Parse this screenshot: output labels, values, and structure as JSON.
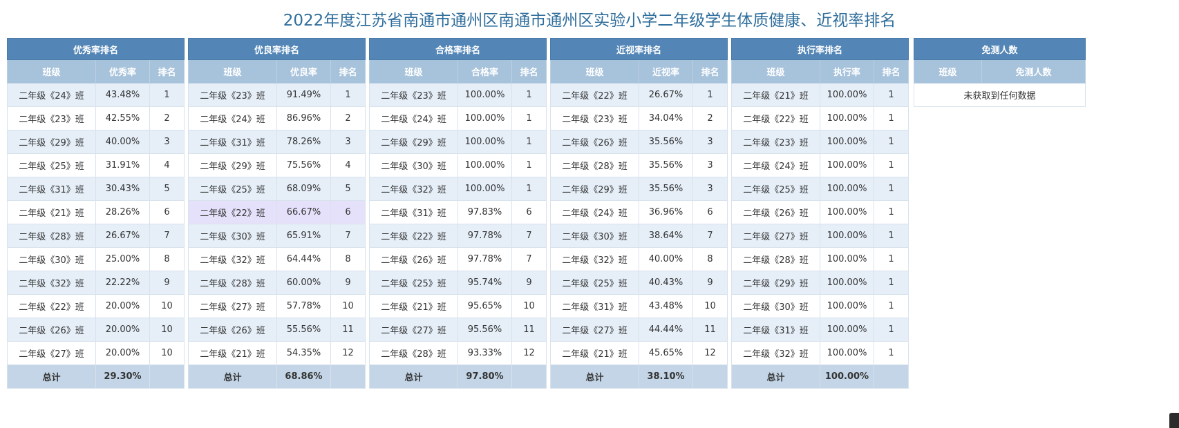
{
  "title": "2022年度江苏省南通市通州区南通市通州区实验小学二年级学生体质健康、近视率排名",
  "total_label": "总计",
  "panels": [
    {
      "title": "优秀率排名",
      "columns": [
        "班级",
        "优秀率",
        "排名"
      ],
      "rows": [
        [
          "二年级《24》班",
          "43.48%",
          "1"
        ],
        [
          "二年级《23》班",
          "42.55%",
          "2"
        ],
        [
          "二年级《29》班",
          "40.00%",
          "3"
        ],
        [
          "二年级《25》班",
          "31.91%",
          "4"
        ],
        [
          "二年级《31》班",
          "30.43%",
          "5"
        ],
        [
          "二年级《21》班",
          "28.26%",
          "6"
        ],
        [
          "二年级《28》班",
          "26.67%",
          "7"
        ],
        [
          "二年级《30》班",
          "25.00%",
          "8"
        ],
        [
          "二年级《32》班",
          "22.22%",
          "9"
        ],
        [
          "二年级《22》班",
          "20.00%",
          "10"
        ],
        [
          "二年级《26》班",
          "20.00%",
          "10"
        ],
        [
          "二年级《27》班",
          "20.00%",
          "10"
        ]
      ],
      "total": "29.30%"
    },
    {
      "title": "优良率排名",
      "columns": [
        "班级",
        "优良率",
        "排名"
      ],
      "rows": [
        [
          "二年级《23》班",
          "91.49%",
          "1"
        ],
        [
          "二年级《24》班",
          "86.96%",
          "2"
        ],
        [
          "二年级《31》班",
          "78.26%",
          "3"
        ],
        [
          "二年级《29》班",
          "75.56%",
          "4"
        ],
        [
          "二年级《25》班",
          "68.09%",
          "5"
        ],
        [
          "二年级《22》班",
          "66.67%",
          "6"
        ],
        [
          "二年级《30》班",
          "65.91%",
          "7"
        ],
        [
          "二年级《32》班",
          "64.44%",
          "8"
        ],
        [
          "二年级《28》班",
          "60.00%",
          "9"
        ],
        [
          "二年级《27》班",
          "57.78%",
          "10"
        ],
        [
          "二年级《26》班",
          "55.56%",
          "11"
        ],
        [
          "二年级《21》班",
          "54.35%",
          "12"
        ]
      ],
      "total": "68.86%",
      "highlight_row": 5
    },
    {
      "title": "合格率排名",
      "columns": [
        "班级",
        "合格率",
        "排名"
      ],
      "rows": [
        [
          "二年级《23》班",
          "100.00%",
          "1"
        ],
        [
          "二年级《24》班",
          "100.00%",
          "1"
        ],
        [
          "二年级《29》班",
          "100.00%",
          "1"
        ],
        [
          "二年级《30》班",
          "100.00%",
          "1"
        ],
        [
          "二年级《32》班",
          "100.00%",
          "1"
        ],
        [
          "二年级《31》班",
          "97.83%",
          "6"
        ],
        [
          "二年级《22》班",
          "97.78%",
          "7"
        ],
        [
          "二年级《26》班",
          "97.78%",
          "7"
        ],
        [
          "二年级《25》班",
          "95.74%",
          "9"
        ],
        [
          "二年级《21》班",
          "95.65%",
          "10"
        ],
        [
          "二年级《27》班",
          "95.56%",
          "11"
        ],
        [
          "二年级《28》班",
          "93.33%",
          "12"
        ]
      ],
      "total": "97.80%"
    },
    {
      "title": "近视率排名",
      "columns": [
        "班级",
        "近视率",
        "排名"
      ],
      "rows": [
        [
          "二年级《22》班",
          "26.67%",
          "1"
        ],
        [
          "二年级《23》班",
          "34.04%",
          "2"
        ],
        [
          "二年级《26》班",
          "35.56%",
          "3"
        ],
        [
          "二年级《28》班",
          "35.56%",
          "3"
        ],
        [
          "二年级《29》班",
          "35.56%",
          "3"
        ],
        [
          "二年级《24》班",
          "36.96%",
          "6"
        ],
        [
          "二年级《30》班",
          "38.64%",
          "7"
        ],
        [
          "二年级《32》班",
          "40.00%",
          "8"
        ],
        [
          "二年级《25》班",
          "40.43%",
          "9"
        ],
        [
          "二年级《31》班",
          "43.48%",
          "10"
        ],
        [
          "二年级《27》班",
          "44.44%",
          "11"
        ],
        [
          "二年级《21》班",
          "45.65%",
          "12"
        ]
      ],
      "total": "38.10%"
    },
    {
      "title": "执行率排名",
      "columns": [
        "班级",
        "执行率",
        "排名"
      ],
      "rows": [
        [
          "二年级《21》班",
          "100.00%",
          "1"
        ],
        [
          "二年级《22》班",
          "100.00%",
          "1"
        ],
        [
          "二年级《23》班",
          "100.00%",
          "1"
        ],
        [
          "二年级《24》班",
          "100.00%",
          "1"
        ],
        [
          "二年级《25》班",
          "100.00%",
          "1"
        ],
        [
          "二年级《26》班",
          "100.00%",
          "1"
        ],
        [
          "二年级《27》班",
          "100.00%",
          "1"
        ],
        [
          "二年级《28》班",
          "100.00%",
          "1"
        ],
        [
          "二年级《29》班",
          "100.00%",
          "1"
        ],
        [
          "二年级《30》班",
          "100.00%",
          "1"
        ],
        [
          "二年级《31》班",
          "100.00%",
          "1"
        ],
        [
          "二年级《32》班",
          "100.00%",
          "1"
        ]
      ],
      "total": "100.00%"
    }
  ],
  "exempt": {
    "title": "免测人数",
    "columns": [
      "班级",
      "免测人数"
    ],
    "empty_text": "未获取到任何数据"
  }
}
